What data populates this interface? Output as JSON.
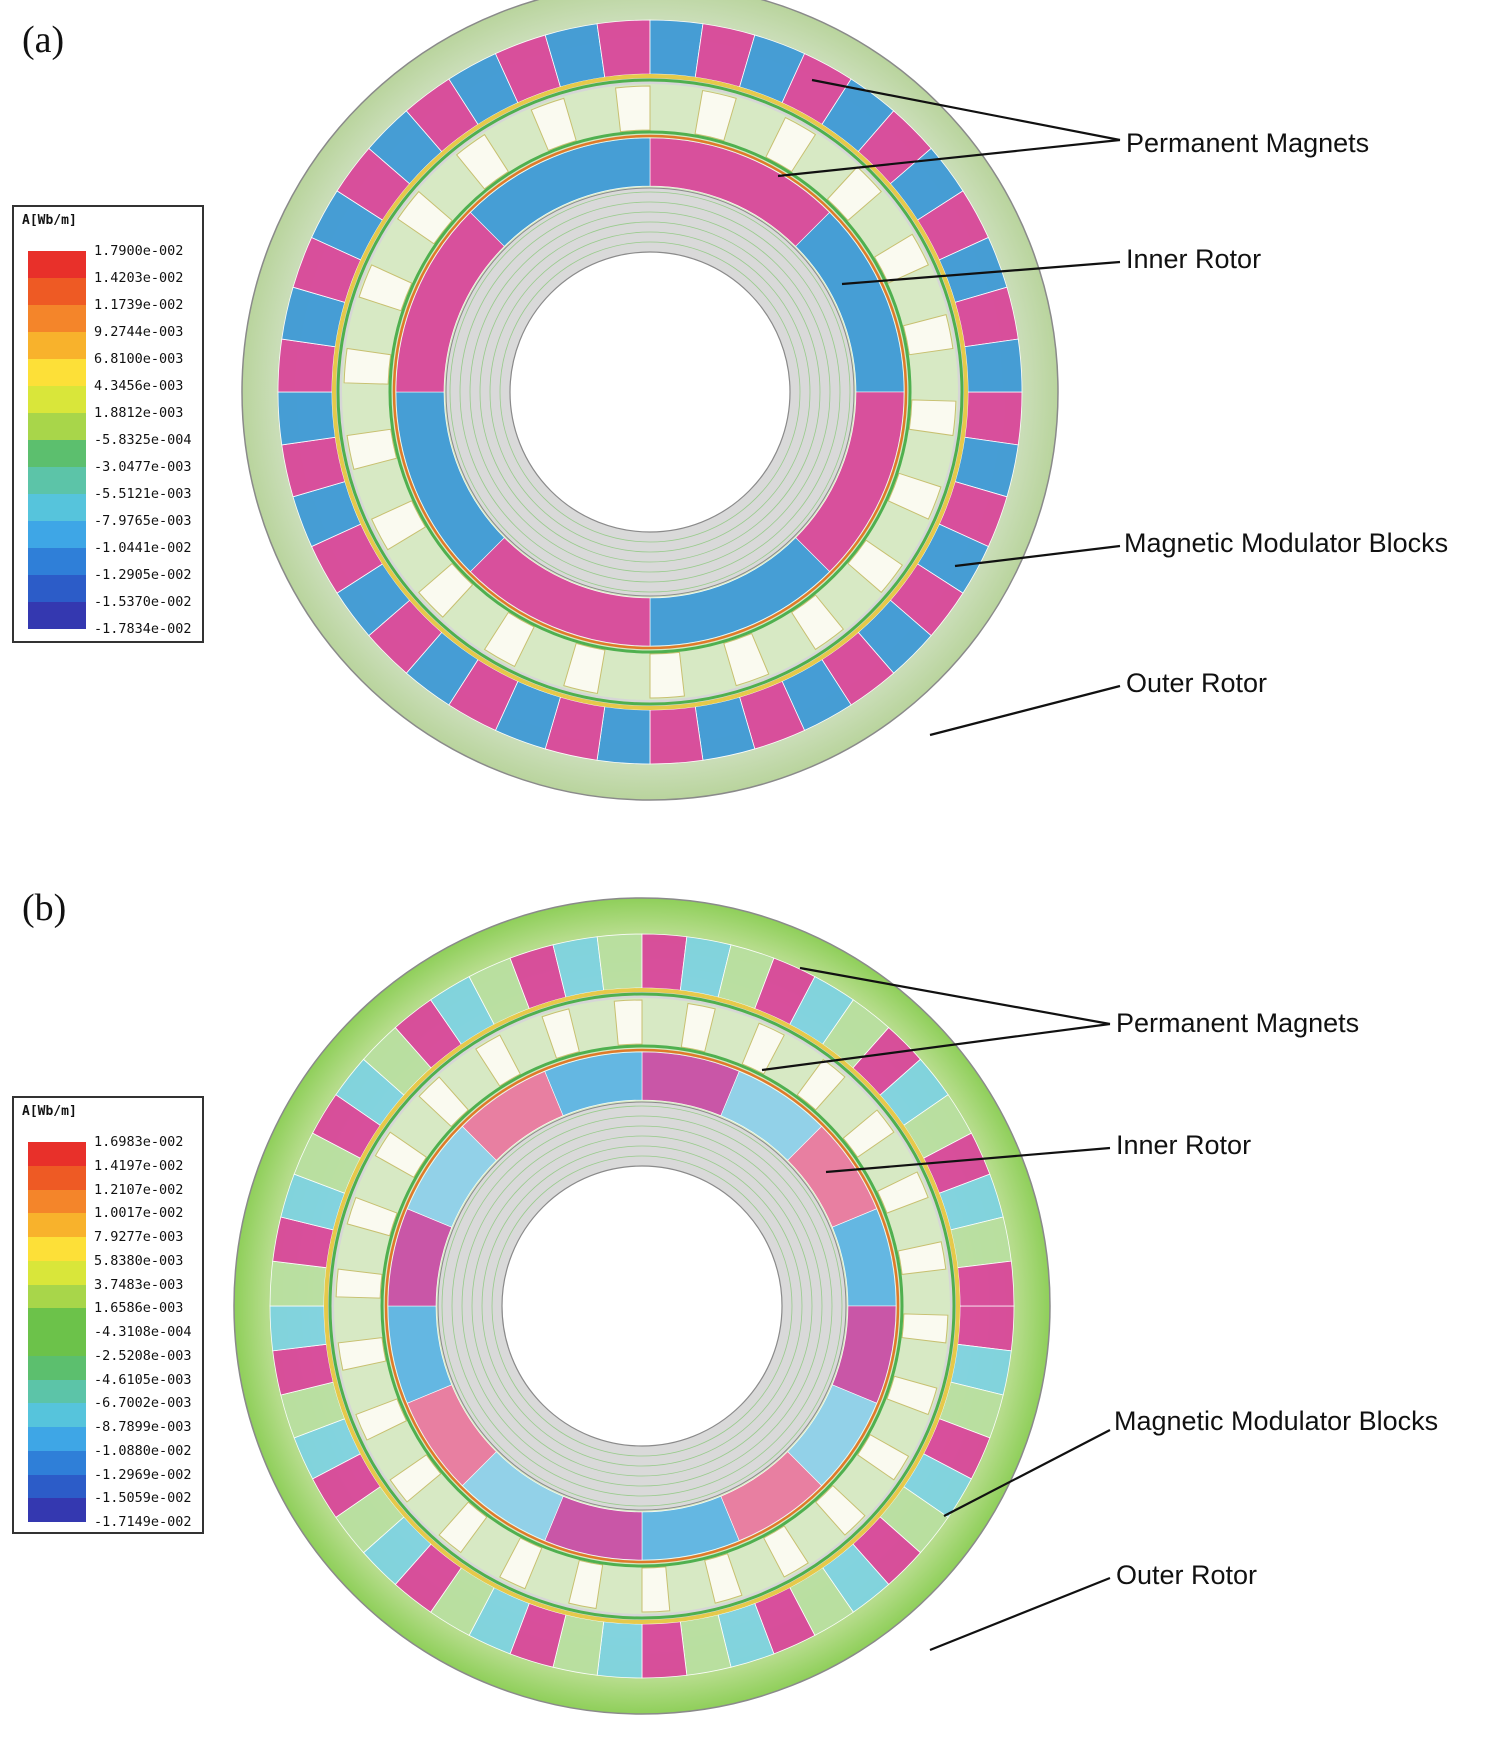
{
  "panels": [
    {
      "letter": "(a)",
      "legend_title": "A[Wb/m]",
      "legend_values": [
        "1.7900e-002",
        "1.4203e-002",
        "1.1739e-002",
        "9.2744e-003",
        "6.8100e-003",
        "4.3456e-003",
        "1.8812e-003",
        "-5.8325e-004",
        "-3.0477e-003",
        "-5.5121e-003",
        "-7.9765e-003",
        "-1.0441e-002",
        "-1.2905e-002",
        "-1.5370e-002",
        "-1.7834e-002"
      ],
      "labels": {
        "permanent_magnets": "Permanent Magnets",
        "inner_rotor": "Inner Rotor",
        "modulator_blocks": "Magnetic Modulator Blocks",
        "outer_rotor": "Outer Rotor"
      }
    },
    {
      "letter": "(b)",
      "legend_title": "A[Wb/m]",
      "legend_values": [
        "1.6983e-002",
        "1.4197e-002",
        "1.2107e-002",
        "1.0017e-002",
        "7.9277e-003",
        "5.8380e-003",
        "3.7483e-003",
        "1.6586e-003",
        "-4.3108e-004",
        "-2.5208e-003",
        "-4.6105e-003",
        "-6.7002e-003",
        "-8.7899e-003",
        "-1.0880e-002",
        "-1.2969e-002",
        "-1.5059e-002",
        "-1.7149e-002"
      ],
      "labels": {
        "permanent_magnets": "Permanent Magnets",
        "inner_rotor": "Inner Rotor",
        "modulator_blocks": "Magnetic Modulator Blocks",
        "outer_rotor": "Outer Rotor"
      }
    }
  ],
  "colors": {
    "magenta": "#d9489a",
    "blue": "#3f9ad6",
    "gray": "#c9c9c9",
    "green": "#8fcf5a",
    "line": "#111111"
  },
  "legend_scale": [
    "#e8302a",
    "#ee5a24",
    "#f4852a",
    "#f8b22c",
    "#fde038",
    "#d9e63a",
    "#a8d64a",
    "#6cc24a",
    "#5cbf6e",
    "#5cc4a8",
    "#56c4dc",
    "#3ea6e6",
    "#2f7fd8",
    "#2c5cc8",
    "#3438b0"
  ]
}
